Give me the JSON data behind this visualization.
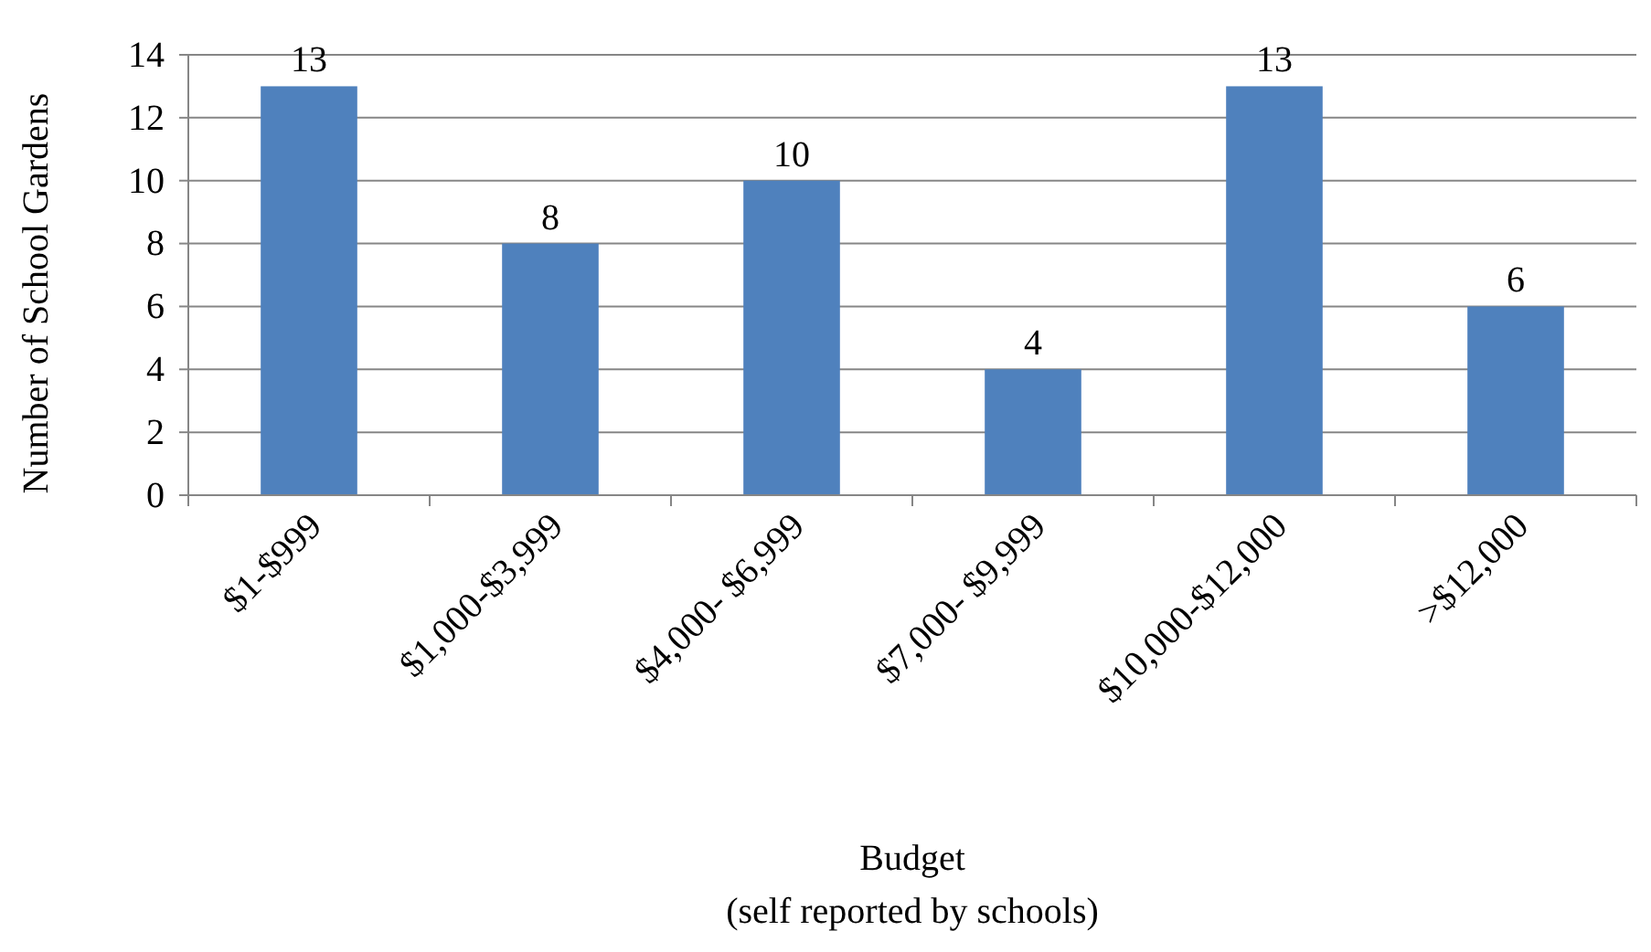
{
  "chart_data": {
    "type": "bar",
    "xlabel": "Budget\n(self reported by schools)",
    "ylabel": "Number of School Gardens",
    "categories": [
      "$1-$999",
      "$1,000-$3,999",
      "$4,000- $6,999",
      "$7,000- $9,999",
      "$10,000-$12,000",
      ">$12,000"
    ],
    "values": [
      13,
      8,
      10,
      4,
      13,
      6
    ],
    "color": "#4f81bd",
    "ylim": [
      0,
      14
    ],
    "yticks": [
      0,
      2,
      4,
      6,
      8,
      10,
      12,
      14
    ],
    "grid": "y",
    "data_labels": true
  }
}
